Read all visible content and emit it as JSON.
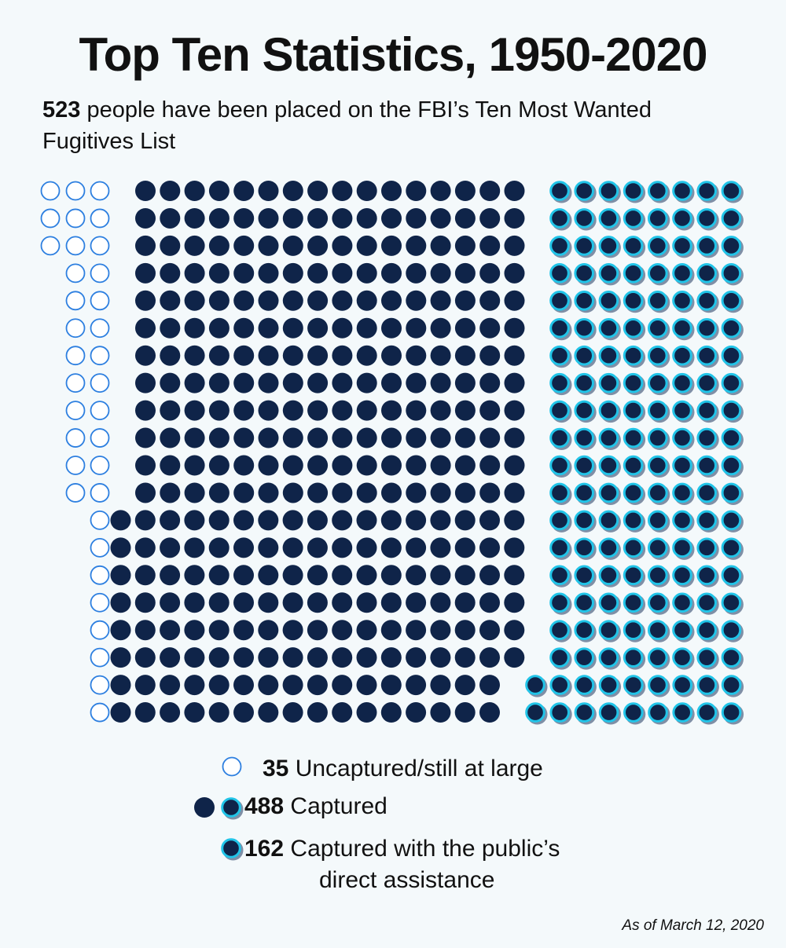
{
  "title": "Top Ten Statistics, 1950-2020",
  "subtitle": {
    "count": "523",
    "text": " people have been placed on the FBI’s Ten Most Wanted Fugitives List"
  },
  "legend": {
    "uncaptured": {
      "count": "35",
      "label": " Uncaptured/still at large"
    },
    "captured": {
      "count": "488",
      "label": " Captured"
    },
    "public": {
      "count": "162",
      "label_line1": " Captured with the public’s",
      "label_line2": "direct assistance"
    }
  },
  "footnote": "As of March 12, 2020",
  "colors": {
    "background": "#f4f9fb",
    "captured": "#0f2449",
    "uncaptured_outline": "#2d7fe0",
    "public_ring": "#21c4e8",
    "shadow": "#7f8fa6"
  },
  "chart_data": {
    "type": "waffle",
    "total": 523,
    "categories": [
      "Uncaptured/still at large",
      "Captured",
      "Captured with the public’s direct assistance"
    ],
    "values": [
      35,
      326,
      162
    ],
    "captured_total": 488,
    "rows": 20
  }
}
